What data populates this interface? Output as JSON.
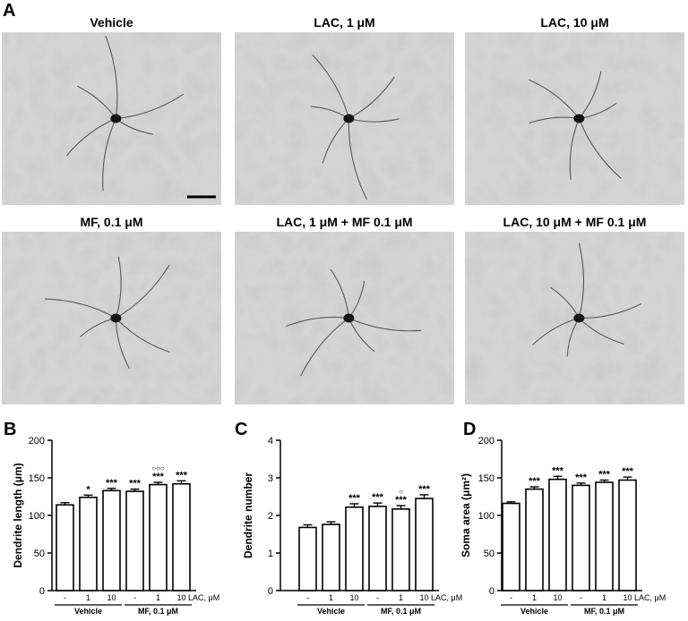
{
  "panel_a": {
    "letter": "A",
    "images": [
      {
        "title": "Vehicle",
        "scale_bar": true
      },
      {
        "title": "LAC, 1 μM",
        "scale_bar": false
      },
      {
        "title": "LAC, 10 μM",
        "scale_bar": false
      },
      {
        "title": "MF, 0.1 μM",
        "scale_bar": false
      },
      {
        "title": "LAC, 1 μM + MF 0.1 μM",
        "scale_bar": false
      },
      {
        "title": "LAC, 10 μM + MF 0.1 μM",
        "scale_bar": false
      }
    ]
  },
  "chart_data": [
    {
      "type": "bar",
      "panel": "B",
      "ylabel": "Dendrite length (μm)",
      "ylim": [
        0,
        200
      ],
      "yticks": [
        "0",
        "50",
        "100",
        "150",
        "200"
      ],
      "categories": [
        "-",
        "1",
        "10",
        "-",
        "1",
        "10"
      ],
      "values": [
        114,
        124,
        133,
        132,
        141,
        142
      ],
      "errors": [
        3,
        3,
        3,
        3,
        3,
        4
      ],
      "annotations": [
        "",
        "*",
        "***",
        "***",
        "***",
        "***"
      ],
      "annotations_extra": [
        "",
        "",
        "",
        "",
        "○○○",
        ""
      ],
      "axis_suffix": "LAC, μM",
      "groups": [
        {
          "label": "Vehicle",
          "range": [
            0,
            2
          ]
        },
        {
          "label": "MF, 0.1 μM",
          "range": [
            3,
            5
          ]
        }
      ]
    },
    {
      "type": "bar",
      "panel": "C",
      "ylabel": "Dendrite number",
      "ylim": [
        0,
        4
      ],
      "yticks": [
        "0",
        "1",
        "2",
        "3",
        "4"
      ],
      "categories": [
        "-",
        "1",
        "10",
        "-",
        "1",
        "10"
      ],
      "values": [
        1.68,
        1.76,
        2.22,
        2.24,
        2.17,
        2.45
      ],
      "errors": [
        0.07,
        0.07,
        0.09,
        0.09,
        0.09,
        0.1
      ],
      "annotations": [
        "",
        "",
        "***",
        "***",
        "***",
        "***"
      ],
      "annotations_extra": [
        "",
        "",
        "",
        "",
        "○",
        ""
      ],
      "axis_suffix": "LAC, μM",
      "groups": [
        {
          "label": "Vehicle",
          "range": [
            0,
            2
          ]
        },
        {
          "label": "MF, 0.1 μM",
          "range": [
            3,
            5
          ]
        }
      ]
    },
    {
      "type": "bar",
      "panel": "D",
      "ylabel": "Soma area (μm²)",
      "ylim": [
        0,
        200
      ],
      "yticks": [
        "0",
        "50",
        "100",
        "150",
        "200"
      ],
      "categories": [
        "-",
        "1",
        "10",
        "-",
        "1",
        "10"
      ],
      "values": [
        116,
        135,
        148,
        140,
        144,
        147
      ],
      "errors": [
        2,
        3,
        4,
        3,
        3,
        4
      ],
      "annotations": [
        "",
        "***",
        "***",
        "***",
        "***",
        "***"
      ],
      "annotations_extra": [
        "",
        "",
        "",
        "",
        "",
        ""
      ],
      "axis_suffix": "LAC, μM",
      "groups": [
        {
          "label": "Vehicle",
          "range": [
            0,
            2
          ]
        },
        {
          "label": "MF, 0.1 μM",
          "range": [
            3,
            5
          ]
        }
      ]
    }
  ]
}
